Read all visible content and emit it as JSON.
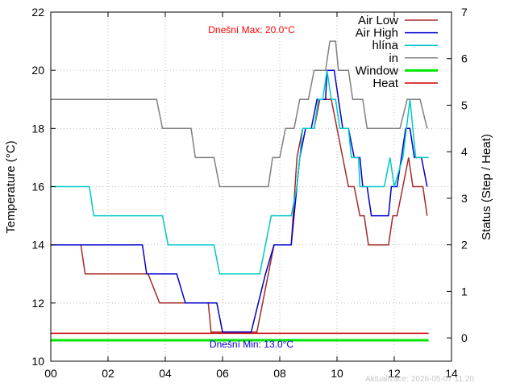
{
  "chart_data": {
    "type": "line",
    "xlabel": "",
    "ylabel": "Temperature (°C)",
    "y2label": "Status (Step / Heat)",
    "xlim": [
      0,
      14
    ],
    "ylim": [
      10,
      22
    ],
    "y2lim": [
      -0.5,
      7
    ],
    "x_tick_labels": [
      "00",
      "02",
      "04",
      "06",
      "08",
      "10",
      "12",
      "14"
    ],
    "y_ticks": [
      10,
      12,
      14,
      16,
      18,
      20,
      22
    ],
    "y2_ticks": [
      0,
      1,
      2,
      3,
      4,
      5,
      6,
      7
    ],
    "grid": true,
    "legend_position": "top-right",
    "annotations": {
      "max": "Dnešní Max: 20.0°C",
      "min": "Dnešní Min: 13.0°C",
      "updated": "Aktualizace: 2026-05-07 11:20"
    },
    "series": [
      {
        "name": "Air Low",
        "color": "#a52a2a",
        "axis": "y",
        "width": 1.5,
        "points": [
          [
            0,
            14
          ],
          [
            1.05,
            14
          ],
          [
            1.2,
            13
          ],
          [
            3.4,
            13
          ],
          [
            3.8,
            12
          ],
          [
            5.5,
            12
          ],
          [
            5.6,
            11
          ],
          [
            7.2,
            11
          ],
          [
            7.6,
            13
          ],
          [
            7.8,
            14
          ],
          [
            8.4,
            14
          ],
          [
            8.6,
            17
          ],
          [
            8.8,
            18
          ],
          [
            9.2,
            18
          ],
          [
            9.4,
            19
          ],
          [
            9.8,
            19
          ],
          [
            10.2,
            17
          ],
          [
            10.4,
            16
          ],
          [
            10.6,
            16
          ],
          [
            10.8,
            15
          ],
          [
            10.95,
            15
          ],
          [
            11.1,
            14
          ],
          [
            11.8,
            14
          ],
          [
            11.95,
            15
          ],
          [
            12.1,
            15
          ],
          [
            12.3,
            16
          ],
          [
            12.5,
            17
          ],
          [
            12.65,
            16
          ],
          [
            13,
            16
          ],
          [
            13.15,
            15
          ]
        ]
      },
      {
        "name": "Air High",
        "color": "#0000cd",
        "axis": "y",
        "width": 1.5,
        "points": [
          [
            0,
            14
          ],
          [
            3.2,
            14
          ],
          [
            3.35,
            13
          ],
          [
            4.4,
            13
          ],
          [
            4.7,
            12
          ],
          [
            5.8,
            12
          ],
          [
            6.0,
            11
          ],
          [
            7.0,
            11
          ],
          [
            7.5,
            13
          ],
          [
            7.8,
            14
          ],
          [
            8.4,
            14
          ],
          [
            8.7,
            17
          ],
          [
            8.9,
            18
          ],
          [
            9.1,
            18
          ],
          [
            9.3,
            19
          ],
          [
            9.6,
            19
          ],
          [
            9.65,
            20
          ],
          [
            9.9,
            20
          ],
          [
            10.05,
            19
          ],
          [
            10.2,
            18
          ],
          [
            10.4,
            18
          ],
          [
            10.6,
            17
          ],
          [
            10.8,
            17
          ],
          [
            10.9,
            16
          ],
          [
            11.05,
            16
          ],
          [
            11.2,
            15
          ],
          [
            11.8,
            15
          ],
          [
            11.9,
            16
          ],
          [
            12.1,
            16
          ],
          [
            12.4,
            18
          ],
          [
            12.55,
            18
          ],
          [
            12.7,
            17
          ],
          [
            12.95,
            17
          ],
          [
            13.15,
            16
          ]
        ]
      },
      {
        "name": "hlína",
        "color": "#00c8c8",
        "axis": "y",
        "width": 1.5,
        "points": [
          [
            0,
            16
          ],
          [
            1.35,
            16
          ],
          [
            1.5,
            15
          ],
          [
            3.9,
            15
          ],
          [
            4.1,
            14
          ],
          [
            5.7,
            14
          ],
          [
            5.9,
            13
          ],
          [
            7.3,
            13
          ],
          [
            7.7,
            15
          ],
          [
            8.4,
            15
          ],
          [
            8.6,
            16
          ],
          [
            8.8,
            18
          ],
          [
            9.2,
            18
          ],
          [
            9.35,
            19
          ],
          [
            9.5,
            19
          ],
          [
            9.65,
            20
          ],
          [
            9.8,
            19
          ],
          [
            9.95,
            19
          ],
          [
            10.1,
            18
          ],
          [
            10.4,
            18
          ],
          [
            10.5,
            17
          ],
          [
            10.75,
            17
          ],
          [
            10.8,
            16
          ],
          [
            11.65,
            16
          ],
          [
            11.85,
            17
          ],
          [
            12.0,
            16
          ],
          [
            12.3,
            17
          ],
          [
            12.55,
            19
          ],
          [
            12.75,
            17
          ],
          [
            13.2,
            17
          ]
        ]
      },
      {
        "name": "in",
        "color": "#808080",
        "axis": "y",
        "width": 1.5,
        "points": [
          [
            0,
            19
          ],
          [
            3.7,
            19
          ],
          [
            3.9,
            18
          ],
          [
            4.9,
            18
          ],
          [
            5.05,
            17
          ],
          [
            5.7,
            17
          ],
          [
            5.9,
            16
          ],
          [
            7.6,
            16
          ],
          [
            7.75,
            17
          ],
          [
            8.0,
            17
          ],
          [
            8.2,
            18
          ],
          [
            8.5,
            18
          ],
          [
            8.7,
            19
          ],
          [
            9.0,
            19
          ],
          [
            9.2,
            20
          ],
          [
            9.6,
            20
          ],
          [
            9.75,
            21
          ],
          [
            9.95,
            21
          ],
          [
            10.05,
            20
          ],
          [
            10.4,
            20
          ],
          [
            10.55,
            19
          ],
          [
            10.9,
            19
          ],
          [
            11.05,
            18
          ],
          [
            12.2,
            18
          ],
          [
            12.45,
            19
          ],
          [
            12.9,
            19
          ],
          [
            13.15,
            18
          ]
        ]
      },
      {
        "name": "Window",
        "color": "#00e600",
        "axis": "y2",
        "width": 3,
        "points": [
          [
            0,
            -0.05
          ],
          [
            13.2,
            -0.05
          ]
        ]
      },
      {
        "name": "Heat",
        "color": "#cc0000",
        "axis": "y2",
        "width": 1.5,
        "points": [
          [
            0,
            0.1
          ],
          [
            13.2,
            0.1
          ]
        ]
      }
    ]
  }
}
